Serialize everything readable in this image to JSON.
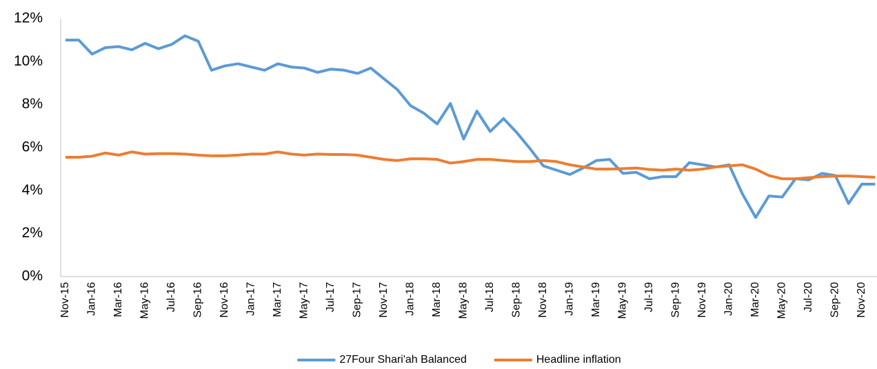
{
  "chart_data": {
    "type": "line",
    "categories": [
      "Nov-15",
      null,
      "Jan-16",
      null,
      "Mar-16",
      null,
      "May-16",
      null,
      "Jul-16",
      null,
      "Sep-16",
      null,
      "Nov-16",
      null,
      "Jan-17",
      null,
      "Mar-17",
      null,
      "May-17",
      null,
      "Jul-17",
      null,
      "Sep-17",
      null,
      "Nov-17",
      null,
      "Jan-18",
      null,
      "Mar-18",
      null,
      "May-18",
      null,
      "Jul-18",
      null,
      "Sep-18",
      null,
      "Nov-18",
      null,
      "Jan-19",
      null,
      "Mar-19",
      null,
      "May-19",
      null,
      "Jul-19",
      null,
      "Sep-19",
      null,
      "Nov-19",
      null,
      "Jan-20",
      null,
      "Mar-20",
      null,
      "May-20",
      null,
      "Jul-20",
      null,
      "Sep-20",
      null,
      "Nov-20",
      null
    ],
    "series": [
      {
        "name": "27Four Shari'ah Balanced",
        "color": "#5b9bd5",
        "values": [
          11.0,
          11.0,
          10.35,
          10.65,
          10.7,
          10.55,
          10.85,
          10.6,
          10.8,
          11.2,
          10.95,
          9.6,
          9.8,
          9.9,
          9.75,
          9.6,
          9.9,
          9.75,
          9.7,
          9.5,
          9.65,
          9.6,
          9.45,
          9.7,
          9.2,
          8.7,
          7.95,
          7.6,
          7.1,
          8.05,
          6.4,
          7.7,
          6.75,
          7.35,
          6.7,
          5.95,
          5.15,
          4.95,
          4.75,
          5.05,
          5.4,
          5.45,
          4.8,
          4.85,
          4.55,
          4.65,
          4.65,
          5.3,
          5.2,
          5.1,
          5.2,
          3.85,
          2.75,
          3.75,
          3.7,
          4.55,
          4.5,
          4.8,
          4.7,
          3.4,
          4.3,
          4.3
        ]
      },
      {
        "name": "Headline inflation",
        "color": "#ed7d31",
        "values": [
          5.55,
          5.55,
          5.6,
          5.75,
          5.65,
          5.8,
          5.7,
          5.72,
          5.72,
          5.7,
          5.65,
          5.62,
          5.62,
          5.65,
          5.7,
          5.7,
          5.8,
          5.7,
          5.65,
          5.7,
          5.68,
          5.68,
          5.65,
          5.55,
          5.45,
          5.4,
          5.48,
          5.48,
          5.45,
          5.28,
          5.35,
          5.45,
          5.45,
          5.4,
          5.35,
          5.35,
          5.4,
          5.35,
          5.2,
          5.1,
          5.0,
          5.0,
          5.02,
          5.05,
          4.98,
          4.95,
          5.0,
          4.95,
          5.0,
          5.1,
          5.15,
          5.2,
          5.0,
          4.7,
          4.55,
          4.55,
          4.6,
          4.65,
          4.68,
          4.68,
          4.65,
          4.62
        ]
      }
    ],
    "ylim": [
      0,
      12
    ],
    "yticks": [
      {
        "value": 0,
        "label": "0%"
      },
      {
        "value": 2,
        "label": "2%"
      },
      {
        "value": 4,
        "label": "4%"
      },
      {
        "value": 6,
        "label": "6%"
      },
      {
        "value": 8,
        "label": "8%"
      },
      {
        "value": 10,
        "label": "10%"
      },
      {
        "value": 12,
        "label": "12%"
      }
    ],
    "grid": false,
    "legend": "bottom"
  }
}
